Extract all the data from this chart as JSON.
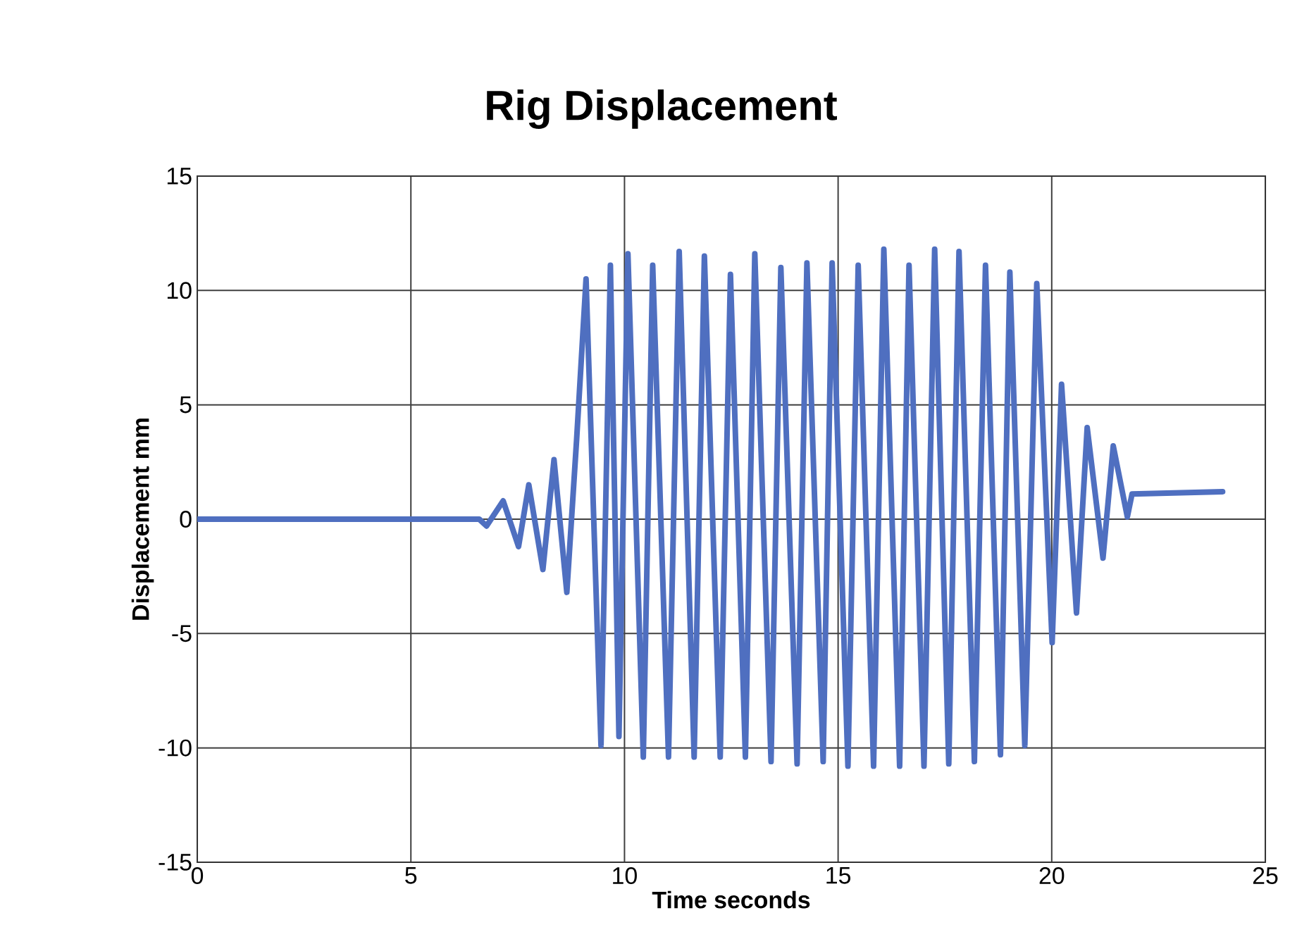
{
  "chart_data": {
    "type": "line",
    "title": "Rig Displacement",
    "xlabel": "Time seconds",
    "ylabel": "Displacement mm",
    "xlim": [
      0,
      25
    ],
    "xticks": [
      0,
      5,
      10,
      15,
      20,
      25
    ],
    "ylim": [
      -15,
      15
    ],
    "yticks": [
      -15,
      -10,
      -5,
      0,
      5,
      10,
      15
    ],
    "grid": true,
    "marker": "none",
    "line_style": "solid",
    "series": [
      {
        "color": "#4f6fc0",
        "x": [
          0,
          6.6,
          6.77,
          7.16,
          7.52,
          7.76,
          8.09,
          8.35,
          8.65,
          8.88,
          9.1,
          9.45,
          9.67,
          9.87,
          10.08,
          10.44,
          10.66,
          11.03,
          11.28,
          11.63,
          11.87,
          12.24,
          12.48,
          12.83,
          13.05,
          13.43,
          13.66,
          14.04,
          14.27,
          14.65,
          14.86,
          15.23,
          15.47,
          15.83,
          16.07,
          16.44,
          16.66,
          17.01,
          17.26,
          17.59,
          17.83,
          18.19,
          18.45,
          18.8,
          19.02,
          19.37,
          19.65,
          20.01,
          20.23,
          20.58,
          20.83,
          21.2,
          21.44,
          21.77,
          21.88,
          24.0
        ],
        "values": [
          0,
          0,
          -0.3,
          0.8,
          -1.2,
          1.5,
          -2.2,
          2.6,
          -3.2,
          3.5,
          10.5,
          -9.9,
          11.1,
          -9.5,
          11.6,
          -10.4,
          11.1,
          -10.4,
          11.7,
          -10.4,
          11.5,
          -10.4,
          10.7,
          -10.4,
          11.6,
          -10.6,
          11.0,
          -10.7,
          11.2,
          -10.6,
          11.2,
          -10.8,
          11.1,
          -10.8,
          11.8,
          -10.8,
          11.1,
          -10.8,
          11.8,
          -10.7,
          11.7,
          -10.6,
          11.1,
          -10.3,
          10.8,
          -9.9,
          10.3,
          -5.4,
          5.9,
          -4.1,
          4.0,
          -1.7,
          3.2,
          0.1,
          1.1,
          1.2
        ]
      }
    ]
  }
}
